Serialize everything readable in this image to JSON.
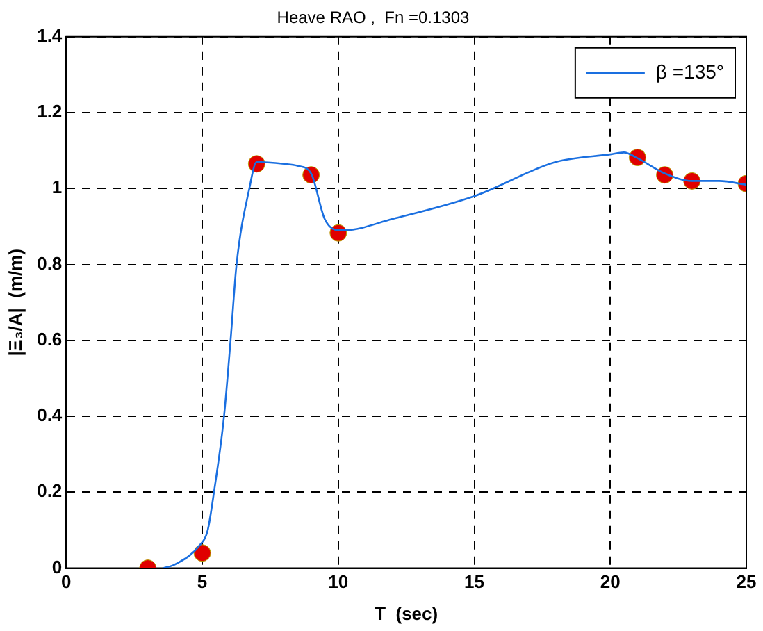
{
  "chart_data": {
    "type": "line",
    "title": "Heave RAO ,  Fn =0.1303",
    "xlabel": "T  (sec)",
    "ylabel": "|Ξ₃/A|  (m/m)",
    "xlim": [
      0,
      25
    ],
    "xticks": [
      0,
      5,
      10,
      15,
      20,
      25
    ],
    "ylim": [
      0,
      1.4
    ],
    "yticks": [
      0,
      0.2,
      0.4,
      0.6,
      0.8,
      1,
      1.2,
      1.4
    ],
    "grid": true,
    "legend": "top right",
    "series": [
      {
        "name": "β =135°",
        "type": "line",
        "marker": "none",
        "color": "#1a6fe0",
        "x": [
          3.57,
          4,
          4.9,
          5.2,
          5.43,
          5.8,
          6.04,
          6.26,
          6.73,
          7,
          8,
          8.5,
          9,
          9.5,
          10,
          10.2,
          12,
          15,
          18,
          20,
          20.5,
          21,
          22,
          23,
          24,
          25
        ],
        "values": [
          0,
          0.01,
          0.06,
          0.1,
          0.2,
          0.4,
          0.6,
          0.8,
          1,
          1.07,
          1.065,
          1.06,
          1.04,
          0.92,
          0.89,
          0.89,
          0.92,
          0.98,
          1.07,
          1.09,
          1.095,
          1.08,
          1.04,
          1.02,
          1.02,
          1.01
        ]
      },
      {
        "type": "scatter",
        "marker": "circle",
        "color": "#e00000",
        "x": [
          3,
          5,
          7,
          9,
          10,
          21,
          22,
          23,
          25
        ],
        "values": [
          0,
          0.04,
          1.065,
          1.036,
          0.883,
          1.082,
          1.036,
          1.02,
          1.013
        ]
      }
    ]
  }
}
